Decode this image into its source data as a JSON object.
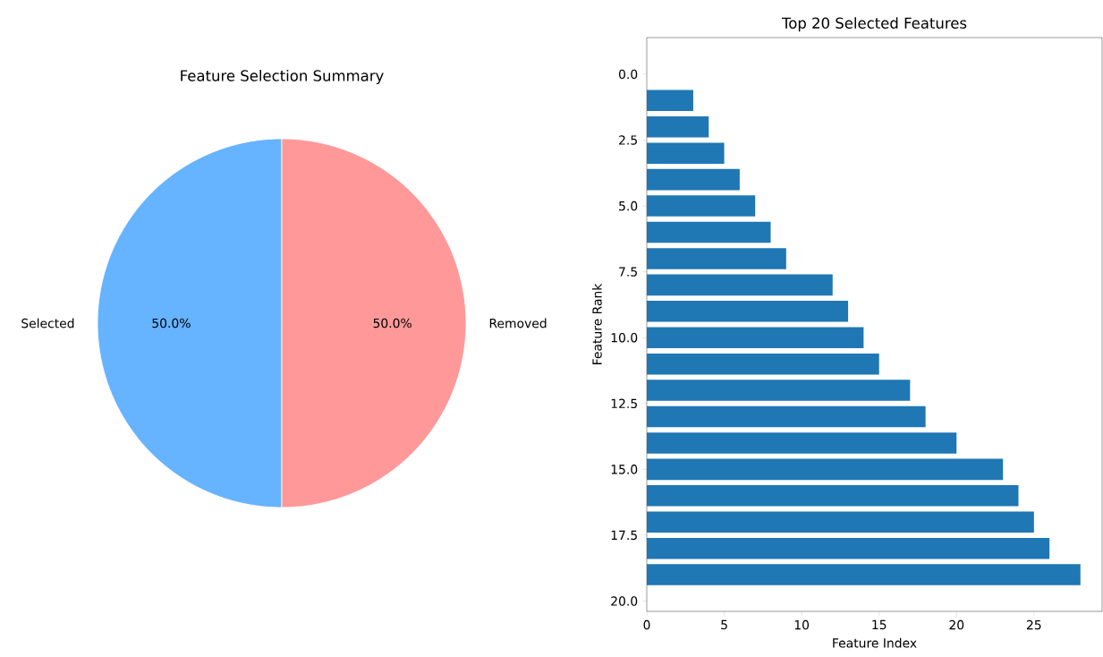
{
  "chart_data": [
    {
      "type": "pie",
      "title": "Feature Selection Summary",
      "categories": [
        "Selected",
        "Removed"
      ],
      "values": [
        50,
        50
      ],
      "colors": [
        "#66b3ff",
        "#ff9999"
      ],
      "value_labels": [
        "50.0%",
        "50.0%"
      ]
    },
    {
      "type": "bar",
      "orientation": "horizontal",
      "title": "Top 20 Selected Features",
      "xlabel": "Feature Index",
      "ylabel": "Feature Rank",
      "x": [
        0,
        1,
        2,
        3,
        4,
        5,
        6,
        7,
        8,
        9,
        10,
        11,
        12,
        13,
        14,
        15,
        16,
        17,
        18,
        19
      ],
      "values": [
        0,
        3,
        4,
        5,
        6,
        7,
        8,
        9,
        12,
        13,
        14,
        15,
        17,
        18,
        20,
        23,
        24,
        25,
        26,
        28
      ],
      "color": "#1f77b4",
      "xlim": [
        0,
        29.4
      ],
      "ylim": [
        20.39,
        -1.39
      ],
      "xticks": [
        0,
        5,
        10,
        15,
        20,
        25
      ],
      "yticks": [
        {
          "value": 0,
          "label": "0.0"
        },
        {
          "value": 2.5,
          "label": "2.5"
        },
        {
          "value": 5,
          "label": "5.0"
        },
        {
          "value": 7.5,
          "label": "7.5"
        },
        {
          "value": 10,
          "label": "10.0"
        },
        {
          "value": 12.5,
          "label": "12.5"
        },
        {
          "value": 15,
          "label": "15.0"
        },
        {
          "value": 17.5,
          "label": "17.5"
        },
        {
          "value": 20,
          "label": "20.0"
        }
      ]
    }
  ]
}
